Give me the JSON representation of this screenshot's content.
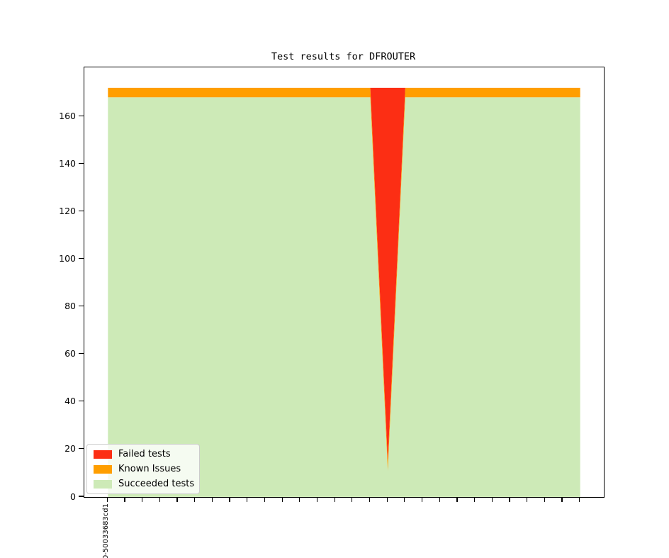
{
  "title": "Test results for DFROUTER",
  "chart_data": {
    "type": "area",
    "stacked": true,
    "title": "Test results for DFROUTER",
    "n_points": 28,
    "xlim": [
      -1.35,
      28.35
    ],
    "ylim": [
      0,
      180.6
    ],
    "grid": false,
    "y_ticks": [
      0,
      20,
      40,
      60,
      80,
      100,
      120,
      140,
      160
    ],
    "x_tick_labels": [
      "0-50033683cd1",
      "",
      "",
      "",
      "",
      "",
      "",
      "",
      "",
      "",
      "",
      "",
      "",
      "",
      "",
      "",
      "",
      "",
      "",
      "",
      "",
      "",
      "",
      "",
      "",
      "",
      "",
      ""
    ],
    "series": [
      {
        "id": "succeeded",
        "name": "Succeeded tests",
        "color": "#cdeab7",
        "values": [
          168,
          168,
          168,
          168,
          168,
          168,
          168,
          168,
          168,
          168,
          168,
          168,
          168,
          168,
          168,
          168,
          11,
          168,
          168,
          168,
          168,
          168,
          168,
          168,
          168,
          168,
          168,
          168
        ]
      },
      {
        "id": "known",
        "name": "Known Issues",
        "color": "#ff9e00",
        "values": [
          4,
          4,
          4,
          4,
          4,
          4,
          4,
          4,
          4,
          4,
          4,
          4,
          4,
          4,
          4,
          4,
          4,
          4,
          4,
          4,
          4,
          4,
          4,
          4,
          4,
          4,
          4,
          4
        ]
      },
      {
        "id": "failed",
        "name": "Failed tests",
        "color": "#fc2e14",
        "values": [
          0,
          0,
          0,
          0,
          0,
          0,
          0,
          0,
          0,
          0,
          0,
          0,
          0,
          0,
          0,
          0,
          157,
          0,
          0,
          0,
          0,
          0,
          0,
          0,
          0,
          0,
          0,
          0
        ]
      }
    ],
    "legend": {
      "position": "lower left",
      "entries": [
        {
          "series": "failed",
          "label": "Failed tests",
          "color": "#fc2e14"
        },
        {
          "series": "known",
          "label": "Known Issues",
          "color": "#ff9e00"
        },
        {
          "series": "succeeded",
          "label": "Succeeded tests",
          "color": "#cdeab7"
        }
      ]
    }
  }
}
